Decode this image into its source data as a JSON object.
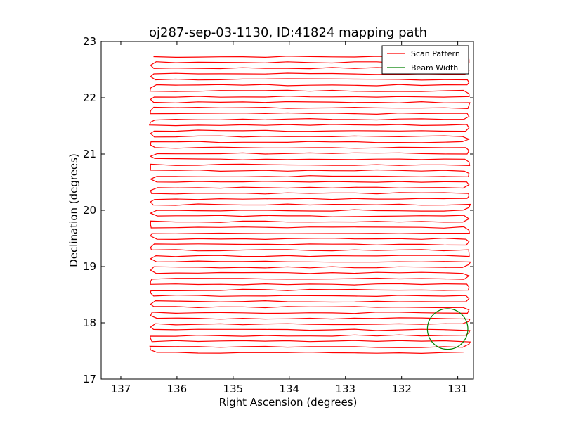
{
  "chart_data": {
    "type": "line",
    "title": "oj287-sep-03-1130, ID:41824 mapping path",
    "xlabel": "Right Ascension (degrees)",
    "ylabel": "Declination (degrees)",
    "xlim": [
      137.35,
      130.72
    ],
    "ylim": [
      17,
      23
    ],
    "x_reversed": true,
    "xticks": [
      137,
      136,
      135,
      134,
      133,
      132,
      131
    ],
    "yticks": [
      17,
      18,
      19,
      20,
      21,
      22,
      23
    ],
    "grid": false,
    "legend": {
      "position": "top-right",
      "entries": [
        {
          "label": "Scan Pattern",
          "color": "#ff0000"
        },
        {
          "label": "Beam Width",
          "color": "#008000"
        }
      ]
    },
    "series": [
      {
        "name": "Scan Pattern",
        "color": "#ff0000",
        "pattern": "raster",
        "ra_start": 136.42,
        "ra_end": 130.85,
        "dec_start": 22.73,
        "dec_end": 17.47,
        "num_rows": 53
      },
      {
        "name": "Beam Width",
        "color": "#008000",
        "shape": "circle",
        "center_ra": 131.18,
        "center_dec": 17.89,
        "radius_deg": 0.36
      }
    ]
  }
}
